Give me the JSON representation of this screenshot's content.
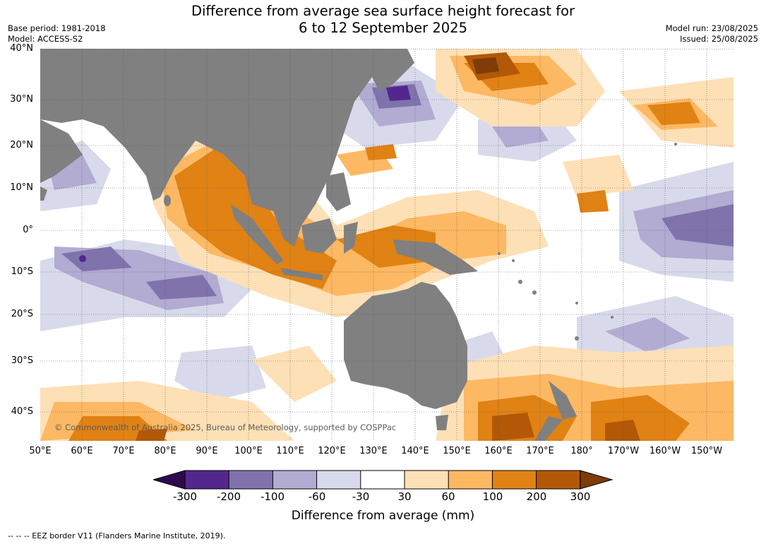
{
  "title": {
    "line1": "Difference from average sea surface height forecast for",
    "line2": "6 to 12 September 2025"
  },
  "meta_left": {
    "base_period": "Base period: 1981-2018",
    "model": "Model: ACCESS-S2"
  },
  "meta_right": {
    "model_run": "Model run: 23/08/2025",
    "issued": "Issued: 25/08/2025"
  },
  "latitudes": [
    "40°N",
    "30°N",
    "20°N",
    "10°N",
    "0°",
    "10°S",
    "20°S",
    "30°S",
    "40°S"
  ],
  "longitudes": [
    "50°E",
    "60°E",
    "70°E",
    "80°E",
    "90°E",
    "100°E",
    "110°E",
    "120°E",
    "130°E",
    "140°E",
    "150°E",
    "160°E",
    "170°E",
    "180°",
    "170°W",
    "160°W",
    "150°W"
  ],
  "copyright": "© Commonwealth of Australia 2025, Bureau of Meteorology, supported by COSPPac",
  "colorbar": {
    "ticks": [
      "-300",
      "-200",
      "-100",
      "-60",
      "-30",
      "30",
      "60",
      "100",
      "200",
      "300"
    ],
    "colors": {
      "lt_-300": "#2d0a4e",
      "-300_-200": "#54278f",
      "-200_-100": "#8073ac",
      "-100_-60": "#b2abd2",
      "-60_-30": "#d8daeb",
      "-30_30": "#ffffff",
      "30_60": "#fee0b6",
      "60_100": "#fdb863",
      "100_200": "#e08214",
      "200_300": "#b35806",
      "gt_300": "#7f3b08"
    },
    "land": "#808080",
    "title": "Difference from average (mm)"
  },
  "footer": "-- -- -- EEZ border V11 (Flanders Marine Institute, 2019)."
}
